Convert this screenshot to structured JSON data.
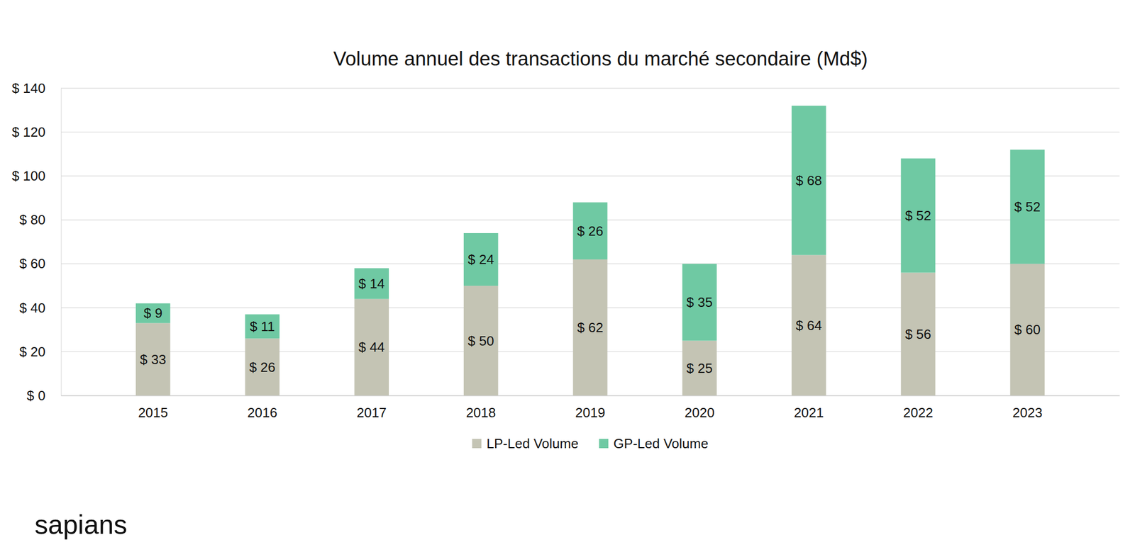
{
  "chart_data": {
    "type": "bar",
    "title": "Volume annuel des transactions du marché secondaire (Md$)",
    "categories": [
      "2015",
      "2016",
      "2017",
      "2018",
      "2019",
      "2020",
      "2021",
      "2022",
      "2023"
    ],
    "series": [
      {
        "name": "LP-Led Volume",
        "color": "#c4c4b4",
        "values": [
          33,
          26,
          44,
          50,
          62,
          25,
          64,
          56,
          60
        ],
        "value_labels": [
          "$ 33",
          "$ 26",
          "$ 44",
          "$ 50",
          "$ 62",
          "$ 25",
          "$ 64",
          "$ 56",
          "$ 60"
        ]
      },
      {
        "name": "GP-Led Volume",
        "color": "#6fc9a3",
        "values": [
          9,
          11,
          14,
          24,
          26,
          35,
          68,
          52,
          52
        ],
        "value_labels": [
          "$ 9",
          "$ 11",
          "$ 14",
          "$ 24",
          "$ 26",
          "$ 35",
          "$ 68",
          "$ 52",
          "$ 52"
        ]
      }
    ],
    "ylim": [
      0,
      140
    ],
    "yticks": [
      {
        "value": 0,
        "label": "$ 0"
      },
      {
        "value": 20,
        "label": "$ 20"
      },
      {
        "value": 40,
        "label": "$ 40"
      },
      {
        "value": 60,
        "label": "$ 60"
      },
      {
        "value": 80,
        "label": "$ 80"
      },
      {
        "value": 100,
        "label": "$ 100"
      },
      {
        "value": 120,
        "label": "$ 120"
      },
      {
        "value": 140,
        "label": "$ 140"
      }
    ],
    "stacked": true,
    "grid": true,
    "data_labels": true,
    "legend": "bottom",
    "annotations": [
      "sapians"
    ]
  }
}
